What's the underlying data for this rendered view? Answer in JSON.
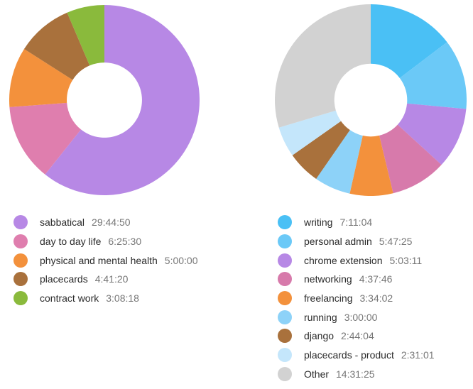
{
  "page": {
    "background_color": "#ffffff",
    "label_text_color": "#2b2b2b",
    "value_text_color": "#767676"
  },
  "chart_data": [
    {
      "type": "pie",
      "variant": "donut",
      "title": "",
      "legend_position": "bottom-left",
      "start_angle_deg": 0,
      "direction": "clockwise",
      "inner_radius_ratio": 0.395,
      "total_seconds": 176398,
      "items": [
        {
          "label": "sabbatical",
          "value": "29:44:50",
          "seconds": 107090,
          "color": "#b788e5"
        },
        {
          "label": "day to day life",
          "value": "6:25:30",
          "seconds": 23130,
          "color": "#df7eae"
        },
        {
          "label": "physical and mental health",
          "value": "5:00:00",
          "seconds": 18000,
          "color": "#f3913c"
        },
        {
          "label": "placecards",
          "value": "4:41:20",
          "seconds": 16880,
          "color": "#a9713c"
        },
        {
          "label": "contract work",
          "value": "3:08:18",
          "seconds": 11298,
          "color": "#8aba3c"
        }
      ]
    },
    {
      "type": "pie",
      "variant": "donut",
      "title": "",
      "legend_position": "bottom-left",
      "start_angle_deg": 0,
      "direction": "clockwise",
      "inner_radius_ratio": 0.38,
      "total_seconds": 176398,
      "items": [
        {
          "label": "writing",
          "value": "7:11:04",
          "seconds": 25864,
          "color": "#4ac0f5"
        },
        {
          "label": "personal admin",
          "value": "5:47:25",
          "seconds": 20845,
          "color": "#6bc9f7"
        },
        {
          "label": "chrome extension",
          "value": "5:03:11",
          "seconds": 18191,
          "color": "#b788e5"
        },
        {
          "label": "networking",
          "value": "4:37:46",
          "seconds": 16666,
          "color": "#d77aab"
        },
        {
          "label": "freelancing",
          "value": "3:34:02",
          "seconds": 12842,
          "color": "#f3913c"
        },
        {
          "label": "running",
          "value": "3:00:00",
          "seconds": 10800,
          "color": "#8dd2f8"
        },
        {
          "label": "django",
          "value": "2:44:04",
          "seconds": 9844,
          "color": "#a9713c"
        },
        {
          "label": "placecards - product",
          "value": "2:31:01",
          "seconds": 9061,
          "color": "#c4e6fb"
        },
        {
          "label": "Other",
          "value": "14:31:25",
          "seconds": 52285,
          "color": "#d2d2d2"
        }
      ]
    }
  ]
}
